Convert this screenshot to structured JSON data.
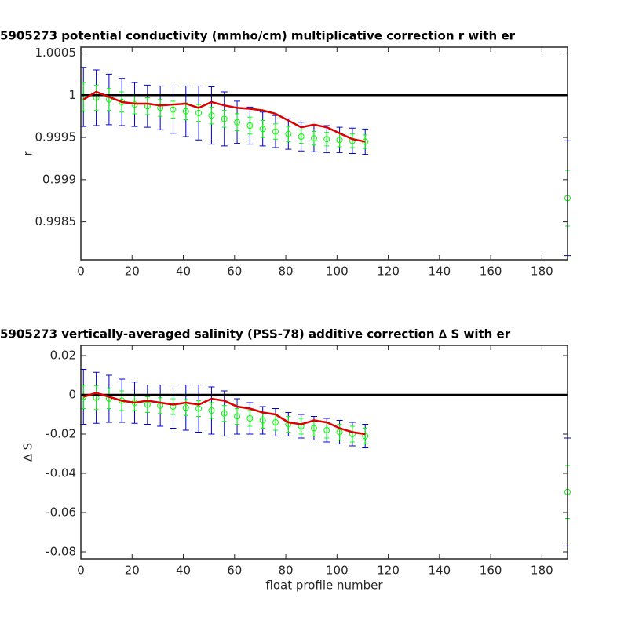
{
  "chart_data": [
    {
      "type": "errorbar",
      "title": "5905273 potential conductivity (mmho/cm) multiplicative correction r with er",
      "ylabel": "r",
      "xlim": [
        0,
        190
      ],
      "xticks": [
        0,
        20,
        40,
        60,
        80,
        100,
        120,
        140,
        160,
        180
      ],
      "ylim": [
        0.99805,
        1.00057
      ],
      "yticks": [
        0.9985,
        0.999,
        0.9995,
        1,
        1.0005
      ],
      "reference_line": 1,
      "series": [
        {
          "color": "#00ff00",
          "marker": "o",
          "x": [
            1,
            6,
            11,
            16,
            21,
            26,
            31,
            36,
            41,
            46,
            51,
            56,
            61,
            66,
            71,
            76,
            81,
            86,
            91,
            96,
            101,
            106,
            111,
            190
          ],
          "values": [
            0.99998,
            0.99997,
            0.99995,
            0.99992,
            0.99989,
            0.99987,
            0.99985,
            0.99983,
            0.99981,
            0.99979,
            0.99976,
            0.99972,
            0.99968,
            0.99964,
            0.9996,
            0.99957,
            0.99954,
            0.99951,
            0.99949,
            0.99948,
            0.99947,
            0.99946,
            0.99945,
            0.99878
          ],
          "errors": [
            0.00017,
            0.00015,
            0.00013,
            0.00012,
            0.00011,
            0.0001,
            0.0001,
            0.0001,
            0.0001,
            0.0001,
            0.0001,
            0.0001,
            0.0001,
            0.0001,
            0.0001,
            9e-05,
            9e-05,
            8e-05,
            8e-05,
            8e-05,
            8e-05,
            8e-05,
            8e-05,
            0.00033
          ],
          "outer_errors": [
            0.00035,
            0.00033,
            0.0003,
            0.00028,
            0.00026,
            0.00025,
            0.00026,
            0.00028,
            0.0003,
            0.00032,
            0.00034,
            0.00032,
            0.00025,
            0.00022,
            0.0002,
            0.00019,
            0.00018,
            0.00017,
            0.00016,
            0.00016,
            0.00015,
            0.00015,
            0.00015,
            0.00068
          ],
          "outer_error_color": "#0000cc"
        },
        {
          "color": "#dd0000",
          "x": [
            1,
            6,
            11,
            16,
            21,
            26,
            31,
            36,
            41,
            46,
            51,
            56,
            61,
            66,
            71,
            76,
            81,
            86,
            91,
            96,
            101,
            106,
            111
          ],
          "values": [
            0.99995,
            1.00004,
            0.99998,
            0.99992,
            0.9999,
            0.9999,
            0.99988,
            0.99989,
            0.9999,
            0.99985,
            0.99992,
            0.99988,
            0.99985,
            0.99984,
            0.99982,
            0.99978,
            0.9997,
            0.99962,
            0.99965,
            0.99962,
            0.99955,
            0.99948,
            0.99945
          ]
        }
      ]
    },
    {
      "type": "errorbar",
      "title": "5905273 vertically-averaged salinity (PSS-78) additive correction ∆ S with er",
      "ylabel": "∆ S",
      "xlabel": "float profile number",
      "xlim": [
        0,
        190
      ],
      "xticks": [
        0,
        20,
        40,
        60,
        80,
        100,
        120,
        140,
        160,
        180
      ],
      "ylim": [
        -0.0836,
        0.0252
      ],
      "yticks": [
        -0.08,
        -0.06,
        -0.04,
        -0.02,
        0,
        0.02
      ],
      "reference_line": 0,
      "series": [
        {
          "color": "#00ff00",
          "marker": "o",
          "x": [
            1,
            6,
            11,
            16,
            21,
            26,
            31,
            36,
            41,
            46,
            51,
            56,
            61,
            66,
            71,
            76,
            81,
            86,
            91,
            96,
            101,
            106,
            111,
            190
          ],
          "values": [
            -0.001,
            -0.0015,
            -0.002,
            -0.003,
            -0.004,
            -0.005,
            -0.0055,
            -0.006,
            -0.0065,
            -0.007,
            -0.008,
            -0.0095,
            -0.011,
            -0.012,
            -0.013,
            -0.014,
            -0.015,
            -0.016,
            -0.017,
            -0.018,
            -0.019,
            -0.02,
            -0.021,
            -0.0495
          ],
          "errors": [
            0.006,
            0.006,
            0.005,
            0.005,
            0.004,
            0.004,
            0.004,
            0.004,
            0.004,
            0.004,
            0.004,
            0.004,
            0.004,
            0.004,
            0.004,
            0.004,
            0.004,
            0.004,
            0.004,
            0.004,
            0.004,
            0.004,
            0.004,
            0.0135
          ],
          "outer_errors": [
            0.014,
            0.013,
            0.012,
            0.011,
            0.0105,
            0.01,
            0.0105,
            0.011,
            0.0115,
            0.012,
            0.012,
            0.0115,
            0.009,
            0.008,
            0.007,
            0.007,
            0.006,
            0.006,
            0.006,
            0.006,
            0.006,
            0.006,
            0.006,
            0.0275
          ],
          "outer_error_color": "#0000cc"
        },
        {
          "color": "#dd0000",
          "x": [
            1,
            6,
            11,
            16,
            21,
            26,
            31,
            36,
            41,
            46,
            51,
            56,
            61,
            66,
            71,
            76,
            81,
            86,
            91,
            96,
            101,
            106,
            111
          ],
          "values": [
            -0.001,
            0.001,
            -0.001,
            -0.003,
            -0.004,
            -0.003,
            -0.004,
            -0.005,
            -0.004,
            -0.005,
            -0.002,
            -0.003,
            -0.006,
            -0.007,
            -0.009,
            -0.01,
            -0.014,
            -0.015,
            -0.013,
            -0.014,
            -0.017,
            -0.019,
            -0.02
          ]
        }
      ]
    }
  ]
}
